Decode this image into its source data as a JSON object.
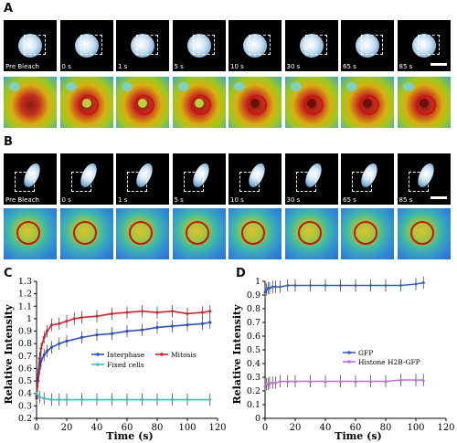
{
  "panels": {
    "A": "A",
    "B": "B",
    "C": "C",
    "D": "D"
  },
  "time_labels": [
    "Pre Bleach",
    "0 s",
    "1 s",
    "5 s",
    "10 s",
    "30 s",
    "65 s",
    "85 s"
  ],
  "colors": {
    "interphase": "#2a50c8",
    "mitosis": "#d81e32",
    "fixed": "#40c0b8",
    "gfp": "#3060c8",
    "h2b": "#c070d8",
    "ring": "#d01010"
  },
  "chart_data": [
    {
      "type": "line",
      "panel": "C",
      "xlabel": "Time (s)",
      "ylabel": "Relative Intensity",
      "xlim": [
        0,
        120
      ],
      "ylim": [
        0.2,
        1.3
      ],
      "xticks": [
        "0",
        "20",
        "40",
        "60",
        "80",
        "100",
        "120"
      ],
      "yticks": [
        "0.2",
        "0.3",
        "0.4",
        "0.5",
        "0.6",
        "0.7",
        "0.8",
        "0.9",
        "1",
        "1.1",
        "1.2",
        "1.3"
      ],
      "legend": "center-right",
      "series": [
        {
          "name": "Interphase",
          "x": [
            0,
            1,
            2,
            3,
            5,
            7,
            10,
            15,
            20,
            30,
            40,
            50,
            60,
            70,
            80,
            90,
            100,
            110,
            115
          ],
          "values": [
            0.38,
            0.5,
            0.6,
            0.66,
            0.71,
            0.74,
            0.77,
            0.8,
            0.82,
            0.85,
            0.87,
            0.88,
            0.9,
            0.91,
            0.93,
            0.94,
            0.95,
            0.96,
            0.97
          ]
        },
        {
          "name": "Mitosis",
          "x": [
            0,
            1,
            2,
            3,
            5,
            7,
            10,
            15,
            20,
            25,
            30,
            40,
            50,
            60,
            70,
            80,
            90,
            100,
            110,
            115
          ],
          "values": [
            0.36,
            0.55,
            0.68,
            0.76,
            0.85,
            0.9,
            0.95,
            0.96,
            0.98,
            1.0,
            1.01,
            1.02,
            1.04,
            1.05,
            1.06,
            1.05,
            1.06,
            1.04,
            1.05,
            1.06
          ]
        },
        {
          "name": "Fixed cells",
          "x": [
            0,
            2,
            5,
            10,
            15,
            20,
            30,
            40,
            50,
            60,
            70,
            80,
            90,
            100,
            115
          ],
          "values": [
            0.4,
            0.37,
            0.36,
            0.35,
            0.35,
            0.35,
            0.35,
            0.35,
            0.35,
            0.35,
            0.35,
            0.35,
            0.35,
            0.35,
            0.35
          ]
        }
      ]
    },
    {
      "type": "line",
      "panel": "D",
      "xlabel": "Time (s)",
      "ylabel": "Relative Intensity",
      "xlim": [
        0,
        120
      ],
      "ylim": [
        0,
        1
      ],
      "xticks": [
        "0",
        "20",
        "40",
        "60",
        "80",
        "100",
        "120"
      ],
      "yticks": [
        "0",
        "0.1",
        "0.2",
        "0.3",
        "0.4",
        "0.5",
        "0.6",
        "0.7",
        "0.8",
        "0.9",
        "1"
      ],
      "legend": "center-right",
      "series": [
        {
          "name": "GFP",
          "x": [
            0,
            1,
            2,
            3,
            5,
            7,
            10,
            15,
            20,
            30,
            40,
            50,
            60,
            70,
            80,
            90,
            100,
            105
          ],
          "values": [
            0.92,
            0.94,
            0.95,
            0.95,
            0.96,
            0.96,
            0.96,
            0.97,
            0.97,
            0.97,
            0.97,
            0.97,
            0.97,
            0.97,
            0.97,
            0.97,
            0.98,
            0.99
          ]
        },
        {
          "name": "Histone H2B-GFP",
          "x": [
            0,
            1,
            2,
            3,
            5,
            7,
            10,
            15,
            20,
            30,
            40,
            50,
            60,
            70,
            80,
            90,
            100,
            105
          ],
          "values": [
            0.24,
            0.25,
            0.25,
            0.26,
            0.26,
            0.26,
            0.27,
            0.27,
            0.27,
            0.27,
            0.27,
            0.27,
            0.27,
            0.27,
            0.27,
            0.28,
            0.28,
            0.28
          ]
        }
      ]
    }
  ]
}
